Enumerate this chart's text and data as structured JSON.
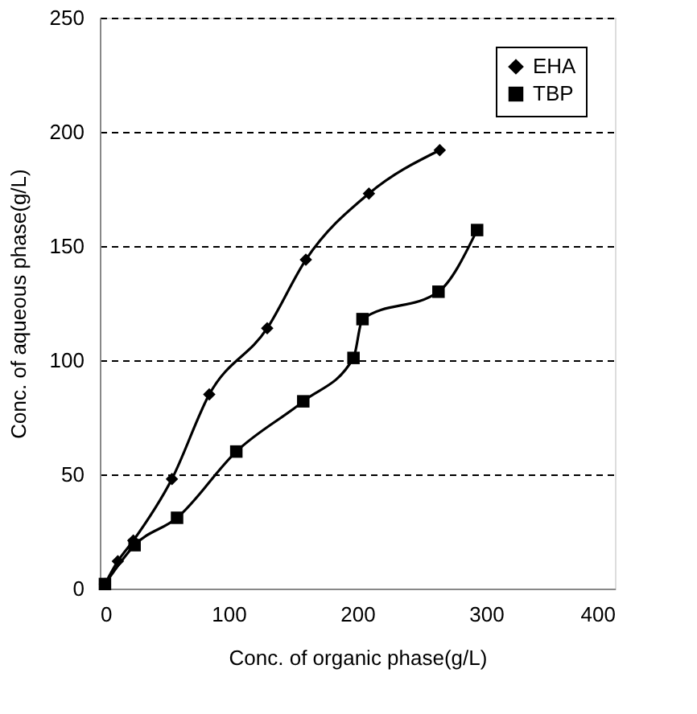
{
  "chart_data": {
    "type": "line",
    "xlabel": "Conc. of organic phase(g/L)",
    "ylabel": "Conc. of aqueous phase(g/L)",
    "xlim": [
      0,
      400
    ],
    "xticks": [
      0,
      100,
      200,
      300,
      400
    ],
    "ylim": [
      0,
      250
    ],
    "yticks": [
      0,
      50,
      100,
      150,
      200,
      250
    ],
    "grid": "y",
    "legend": "top right",
    "series": [
      {
        "name": "EHA",
        "color": "#000000",
        "marker": "diamond",
        "x": [
          4,
          14,
          26,
          56,
          85,
          130,
          160,
          209,
          264
        ],
        "values": [
          2,
          12,
          21,
          48,
          85,
          114,
          144,
          173,
          192
        ]
      },
      {
        "name": "TBP",
        "color": "#000000",
        "marker": "square",
        "x": [
          4,
          27,
          60,
          106,
          158,
          197,
          204,
          263,
          293
        ],
        "values": [
          2,
          19,
          31,
          60,
          82,
          101,
          118,
          130,
          157
        ]
      }
    ]
  }
}
